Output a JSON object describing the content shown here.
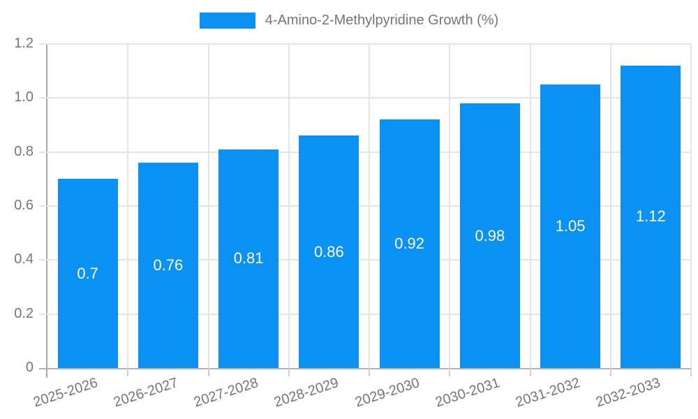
{
  "legend": {
    "label": "4-Amino-2-Methylpyridine Growth (%)"
  },
  "chart_data": {
    "type": "bar",
    "title": "4-Amino-2-Methylpyridine Growth (%)",
    "categories": [
      "2025-2026",
      "2026-2027",
      "2027-2028",
      "2028-2029",
      "2029-2030",
      "2030-2031",
      "2031-2032",
      "2032-2033"
    ],
    "series": [
      {
        "name": "4-Amino-2-Methylpyridine Growth (%)",
        "values": [
          0.7,
          0.76,
          0.81,
          0.86,
          0.92,
          0.98,
          1.05,
          1.12
        ]
      }
    ],
    "values": [
      0.7,
      0.76,
      0.81,
      0.86,
      0.92,
      0.98,
      1.05,
      1.12
    ],
    "bar_labels": [
      "0.7",
      "0.76",
      "0.81",
      "0.86",
      "0.92",
      "0.98",
      "1.05",
      "1.12"
    ],
    "xlabel": "",
    "ylabel": "",
    "ylim": [
      0,
      1.2
    ],
    "yticks": [
      0,
      0.2,
      0.4,
      0.6,
      0.8,
      1.0,
      1.2
    ],
    "ytick_labels": [
      "0",
      "0.2",
      "0.4",
      "0.6",
      "0.8",
      "1.0",
      "1.2"
    ],
    "grid": true,
    "legend_position": "top-center",
    "colors": {
      "bar": "#0a91f2",
      "axis_text": "#757575",
      "grid": "#e4e4e4",
      "axis_line_y": "#a6a6a6",
      "axis_line_x": "#b3b3b3",
      "tick": "#cfcfcf",
      "bar_label": "#ffffff",
      "background": "#ffffff"
    }
  }
}
